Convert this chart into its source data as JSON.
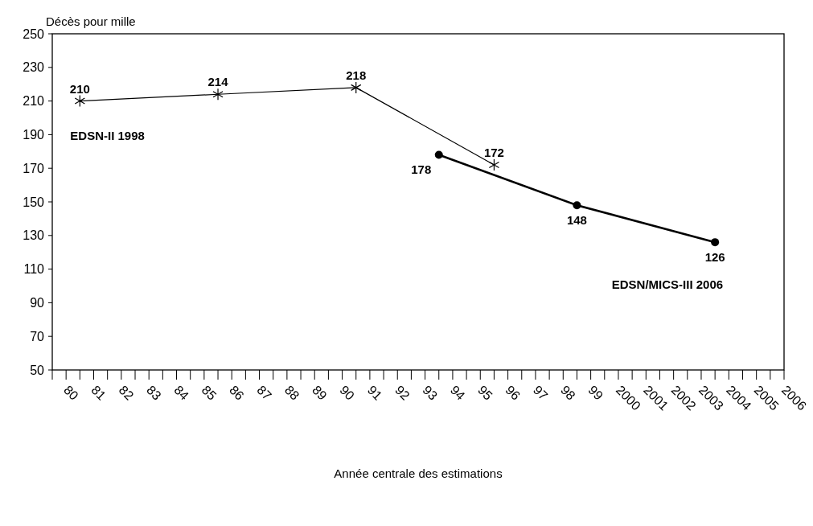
{
  "chart_data": {
    "type": "line",
    "xlabel": "Année centrale des estimations",
    "ylabel": "Décès pour mille",
    "xlim": [
      1979.5,
      2006
    ],
    "ylim": [
      50,
      250
    ],
    "yticks": [
      50,
      70,
      90,
      110,
      130,
      150,
      170,
      190,
      210,
      230,
      250
    ],
    "xticks": [
      {
        "value": 1979.5,
        "label": null
      },
      {
        "value": 1980,
        "label": "80"
      },
      {
        "value": 1980.5,
        "label": null
      },
      {
        "value": 1981,
        "label": "81"
      },
      {
        "value": 1981.5,
        "label": null
      },
      {
        "value": 1982,
        "label": "82"
      },
      {
        "value": 1982.5,
        "label": null
      },
      {
        "value": 1983,
        "label": "83"
      },
      {
        "value": 1983.5,
        "label": null
      },
      {
        "value": 1984,
        "label": "84"
      },
      {
        "value": 1984.5,
        "label": null
      },
      {
        "value": 1985,
        "label": "85"
      },
      {
        "value": 1985.5,
        "label": null
      },
      {
        "value": 1986,
        "label": "86"
      },
      {
        "value": 1986.5,
        "label": null
      },
      {
        "value": 1987,
        "label": "87"
      },
      {
        "value": 1987.5,
        "label": null
      },
      {
        "value": 1988,
        "label": "88"
      },
      {
        "value": 1988.5,
        "label": null
      },
      {
        "value": 1989,
        "label": "89"
      },
      {
        "value": 1989.5,
        "label": null
      },
      {
        "value": 1990,
        "label": "90"
      },
      {
        "value": 1990.5,
        "label": null
      },
      {
        "value": 1991,
        "label": "91"
      },
      {
        "value": 1991.5,
        "label": null
      },
      {
        "value": 1992,
        "label": "92"
      },
      {
        "value": 1992.5,
        "label": null
      },
      {
        "value": 1993,
        "label": "93"
      },
      {
        "value": 1993.5,
        "label": null
      },
      {
        "value": 1994,
        "label": "94"
      },
      {
        "value": 1994.5,
        "label": null
      },
      {
        "value": 1995,
        "label": "95"
      },
      {
        "value": 1995.5,
        "label": null
      },
      {
        "value": 1996,
        "label": "96"
      },
      {
        "value": 1996.5,
        "label": null
      },
      {
        "value": 1997,
        "label": "97"
      },
      {
        "value": 1997.5,
        "label": null
      },
      {
        "value": 1998,
        "label": "98"
      },
      {
        "value": 1998.5,
        "label": null
      },
      {
        "value": 1999,
        "label": "99"
      },
      {
        "value": 1999.5,
        "label": null
      },
      {
        "value": 2000,
        "label": "2000"
      },
      {
        "value": 2000.5,
        "label": null
      },
      {
        "value": 2001,
        "label": "2001"
      },
      {
        "value": 2001.5,
        "label": null
      },
      {
        "value": 2002,
        "label": "2002"
      },
      {
        "value": 2002.5,
        "label": null
      },
      {
        "value": 2003,
        "label": "2003"
      },
      {
        "value": 2003.5,
        "label": null
      },
      {
        "value": 2004,
        "label": "2004"
      },
      {
        "value": 2004.5,
        "label": null
      },
      {
        "value": 2005,
        "label": "2005"
      },
      {
        "value": 2005.5,
        "label": null
      },
      {
        "value": 2006,
        "label": "2006"
      }
    ],
    "grid": false,
    "data_labels": true,
    "series": [
      {
        "name": "EDSN-II 1998",
        "color": "#000000",
        "marker": "cross",
        "x": [
          1980.5,
          1985.5,
          1990.5,
          1995.5
        ],
        "values": [
          210,
          214,
          218,
          172
        ]
      },
      {
        "name": "EDSN/MICS-III 2006",
        "color": "#000000",
        "marker": "circle",
        "x": [
          1993.5,
          1998.5,
          2003.5
        ],
        "values": [
          178,
          148,
          126
        ]
      }
    ]
  }
}
